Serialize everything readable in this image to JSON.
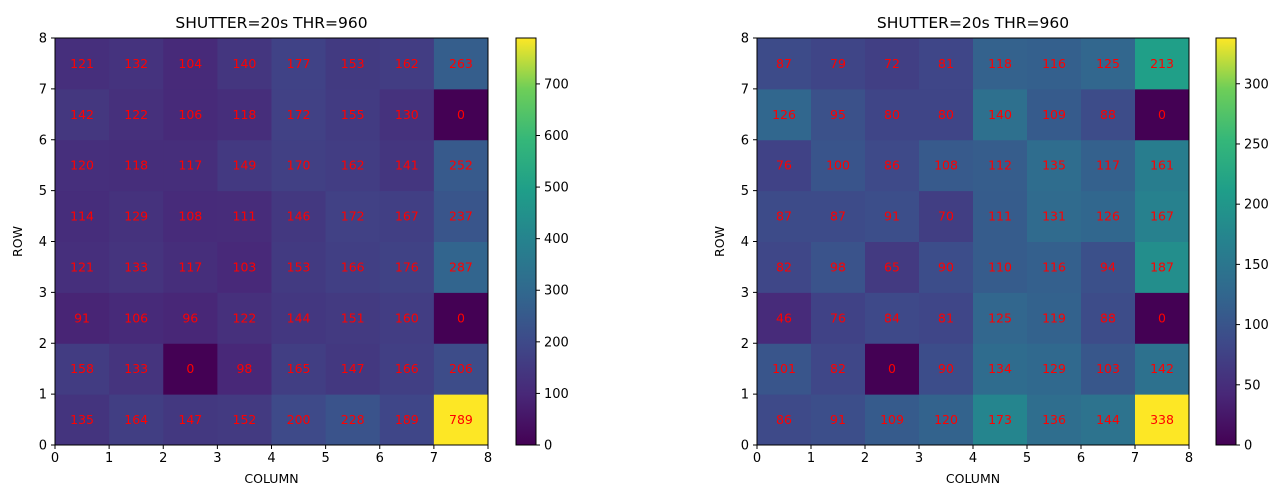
{
  "chart_data": [
    {
      "type": "heatmap",
      "title": "SHUTTER=20s  THR=960",
      "xlabel": "COLUMN",
      "ylabel": "ROW",
      "xlim": [
        0,
        8
      ],
      "ylim": [
        0,
        8
      ],
      "xticks": [
        "0",
        "1",
        "2",
        "3",
        "4",
        "5",
        "6",
        "7",
        "8"
      ],
      "yticks": [
        "0",
        "1",
        "2",
        "3",
        "4",
        "5",
        "6",
        "7",
        "8"
      ],
      "colormap": "viridis",
      "vmin": 0,
      "vmax": 789,
      "colorbar_ticks": [
        "0",
        "100",
        "200",
        "300",
        "400",
        "500",
        "600",
        "700"
      ],
      "label_color": "#ff0000",
      "rows": [
        [
          135,
          164,
          147,
          152,
          200,
          228,
          189,
          789
        ],
        [
          158,
          133,
          0,
          98,
          165,
          147,
          166,
          206
        ],
        [
          91,
          106,
          96,
          122,
          144,
          151,
          160,
          0
        ],
        [
          121,
          133,
          117,
          103,
          153,
          166,
          176,
          287
        ],
        [
          114,
          129,
          108,
          111,
          146,
          172,
          167,
          237
        ],
        [
          120,
          118,
          117,
          149,
          170,
          162,
          141,
          252
        ],
        [
          142,
          122,
          106,
          118,
          172,
          155,
          130,
          0
        ],
        [
          121,
          132,
          104,
          140,
          177,
          153,
          162,
          263
        ]
      ]
    },
    {
      "type": "heatmap",
      "title": "SHUTTER=20s  THR=960",
      "xlabel": "COLUMN",
      "ylabel": "ROW",
      "xlim": [
        0,
        8
      ],
      "ylim": [
        0,
        8
      ],
      "xticks": [
        "0",
        "1",
        "2",
        "3",
        "4",
        "5",
        "6",
        "7",
        "8"
      ],
      "yticks": [
        "0",
        "1",
        "2",
        "3",
        "4",
        "5",
        "6",
        "7",
        "8"
      ],
      "colormap": "viridis",
      "vmin": 0,
      "vmax": 338,
      "colorbar_ticks": [
        "0",
        "50",
        "100",
        "150",
        "200",
        "250",
        "300"
      ],
      "label_color": "#ff0000",
      "rows": [
        [
          86,
          91,
          109,
          120,
          173,
          136,
          144,
          338
        ],
        [
          101,
          82,
          0,
          90,
          134,
          129,
          103,
          142
        ],
        [
          46,
          76,
          84,
          81,
          125,
          119,
          88,
          0
        ],
        [
          82,
          98,
          65,
          90,
          110,
          116,
          94,
          187
        ],
        [
          87,
          87,
          91,
          70,
          111,
          131,
          126,
          167
        ],
        [
          76,
          100,
          86,
          108,
          112,
          135,
          117,
          161
        ],
        [
          126,
          95,
          80,
          80,
          140,
          109,
          88,
          0
        ],
        [
          87,
          79,
          72,
          81,
          118,
          116,
          125,
          213
        ]
      ]
    }
  ]
}
